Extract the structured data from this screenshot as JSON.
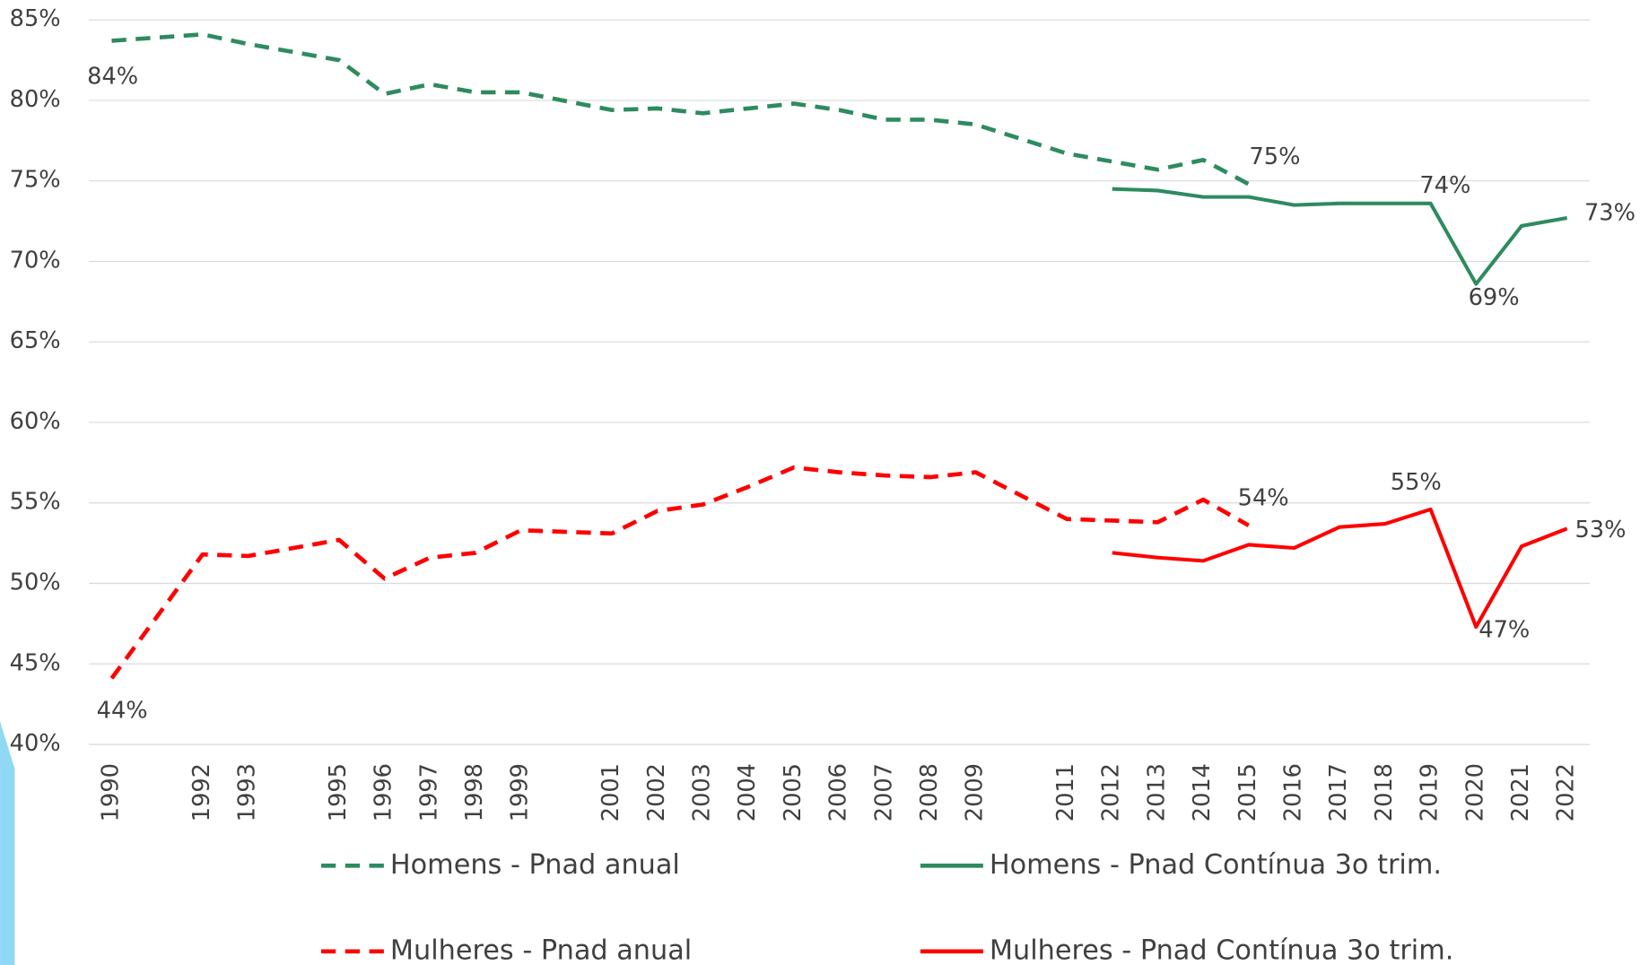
{
  "chart_data": {
    "type": "line",
    "x": [
      1990,
      1992,
      1993,
      1995,
      1996,
      1997,
      1998,
      1999,
      2001,
      2002,
      2003,
      2004,
      2005,
      2006,
      2007,
      2008,
      2009,
      2011,
      2012,
      2013,
      2014,
      2015,
      2016,
      2017,
      2018,
      2019,
      2020,
      2021,
      2022
    ],
    "xlim": [
      1989.5,
      2022.5
    ],
    "xticks": [
      1990,
      1992,
      1993,
      1995,
      1996,
      1997,
      1998,
      1999,
      2001,
      2002,
      2003,
      2004,
      2005,
      2006,
      2007,
      2008,
      2009,
      2011,
      2012,
      2013,
      2014,
      2015,
      2016,
      2017,
      2018,
      2019,
      2020,
      2021,
      2022
    ],
    "ylim": [
      40,
      85
    ],
    "yticks": [
      {
        "value": 40,
        "label": "40%"
      },
      {
        "value": 45,
        "label": "45%"
      },
      {
        "value": 50,
        "label": "50%"
      },
      {
        "value": 55,
        "label": "55%"
      },
      {
        "value": 60,
        "label": "60%"
      },
      {
        "value": 65,
        "label": "65%"
      },
      {
        "value": 70,
        "label": "70%"
      },
      {
        "value": 75,
        "label": "75%"
      },
      {
        "value": 80,
        "label": "80%"
      },
      {
        "value": 85,
        "label": "85%"
      }
    ],
    "grid": true,
    "legend": "bottom",
    "series": [
      {
        "name": "Homens - Pnad anual",
        "color": "#2e8b5f",
        "dashed": true,
        "values": [
          83.7,
          84.1,
          83.5,
          82.5,
          80.4,
          81.0,
          80.5,
          80.5,
          79.4,
          79.5,
          79.2,
          79.5,
          79.8,
          79.4,
          78.8,
          78.8,
          78.5,
          76.7,
          76.2,
          75.7,
          76.3,
          74.8,
          null,
          null,
          null,
          null,
          null,
          null,
          null
        ],
        "value_labels": [
          "84%",
          null,
          null,
          null,
          null,
          null,
          null,
          null,
          null,
          null,
          null,
          null,
          null,
          null,
          null,
          null,
          null,
          null,
          null,
          null,
          null,
          "75%",
          null,
          null,
          null,
          null,
          null,
          null,
          null
        ]
      },
      {
        "name": "Homens - Pnad Contínua 3o trim.",
        "color": "#2e8b5f",
        "dashed": false,
        "values": [
          null,
          null,
          null,
          null,
          null,
          null,
          null,
          null,
          null,
          null,
          null,
          null,
          null,
          null,
          null,
          null,
          null,
          null,
          74.5,
          74.4,
          74.0,
          74.0,
          73.5,
          73.6,
          73.6,
          73.6,
          68.6,
          72.2,
          72.7
        ],
        "value_labels": [
          null,
          null,
          null,
          null,
          null,
          null,
          null,
          null,
          null,
          null,
          null,
          null,
          null,
          null,
          null,
          null,
          null,
          null,
          null,
          null,
          null,
          null,
          null,
          null,
          null,
          "74%",
          "69%",
          null,
          "73%"
        ]
      },
      {
        "name": "Mulheres - Pnad anual",
        "color": "#ff0000",
        "dashed": true,
        "values": [
          44.1,
          51.8,
          51.7,
          52.7,
          50.3,
          51.6,
          51.9,
          53.3,
          53.1,
          54.5,
          54.9,
          56.0,
          57.2,
          56.9,
          56.7,
          56.6,
          56.9,
          54.0,
          53.9,
          53.8,
          55.2,
          53.6,
          null,
          null,
          null,
          null,
          null,
          null,
          null
        ],
        "value_labels": [
          "44%",
          null,
          null,
          null,
          null,
          null,
          null,
          null,
          null,
          null,
          null,
          null,
          null,
          null,
          null,
          null,
          null,
          null,
          null,
          null,
          null,
          "54%",
          null,
          null,
          null,
          null,
          null,
          null,
          null
        ]
      },
      {
        "name": "Mulheres - Pnad Contínua 3o trim.",
        "color": "#ff0000",
        "dashed": false,
        "values": [
          null,
          null,
          null,
          null,
          null,
          null,
          null,
          null,
          null,
          null,
          null,
          null,
          null,
          null,
          null,
          null,
          null,
          null,
          51.9,
          51.6,
          51.4,
          52.4,
          52.2,
          53.5,
          53.7,
          54.6,
          47.3,
          52.3,
          53.4
        ],
        "value_labels": [
          null,
          null,
          null,
          null,
          null,
          null,
          null,
          null,
          null,
          null,
          null,
          null,
          null,
          null,
          null,
          null,
          null,
          null,
          null,
          null,
          null,
          null,
          null,
          null,
          null,
          "55%",
          "47%",
          null,
          "53%"
        ]
      }
    ]
  }
}
